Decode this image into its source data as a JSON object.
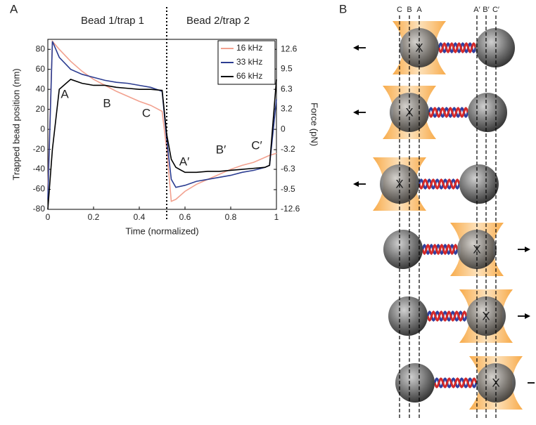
{
  "chart_data": {
    "type": "line",
    "panel_label": "A",
    "xlabel": "Time (normalized)",
    "ylabel": "Trapped bead position (nm)",
    "y2label": "Force (pN)",
    "annotations": [
      "Bead 1/trap 1",
      "Bead 2/trap 2",
      "A",
      "B",
      "C",
      "A′",
      "B′",
      "C′"
    ],
    "x": [
      0,
      0.02,
      0.05,
      0.1,
      0.15,
      0.2,
      0.25,
      0.3,
      0.35,
      0.4,
      0.45,
      0.5,
      0.52,
      0.54,
      0.56,
      0.6,
      0.65,
      0.7,
      0.75,
      0.8,
      0.85,
      0.9,
      0.95,
      0.97,
      1.0
    ],
    "series": [
      {
        "name": "16 kHz",
        "color": "#f2a18f",
        "values": [
          -60,
          88,
          80,
          68,
          58,
          50,
          44,
          38,
          33,
          28,
          24,
          18,
          -20,
          -72,
          -70,
          -62,
          -55,
          -50,
          -45,
          -40,
          -36,
          -33,
          -28,
          -26,
          -24
        ]
      },
      {
        "name": "33 kHz",
        "color": "#2c3d91",
        "values": [
          -70,
          88,
          72,
          60,
          55,
          52,
          49,
          47,
          46,
          44,
          42,
          38,
          -10,
          -50,
          -58,
          -56,
          -52,
          -50,
          -48,
          -46,
          -43,
          -41,
          -38,
          -36,
          30
        ]
      },
      {
        "name": "66 kHz",
        "color": "#000000",
        "values": [
          -80,
          -20,
          40,
          50,
          46,
          44,
          44,
          42,
          41,
          40,
          40,
          39,
          -5,
          -30,
          -38,
          -43,
          -43,
          -42,
          -42,
          -41,
          -40,
          -39,
          -38,
          -36,
          50
        ]
      }
    ],
    "xlim": [
      0,
      1
    ],
    "xticks": [
      0,
      0.2,
      0.4,
      0.6,
      0.8,
      1
    ],
    "ylim": [
      -80,
      90
    ],
    "yticks": [
      -80,
      -60,
      -40,
      -20,
      0,
      20,
      40,
      60,
      80
    ],
    "y2lim": [
      -12.6,
      14.175
    ],
    "y2ticks": [
      -12.6,
      -9.5,
      -6.3,
      -3.2,
      0,
      3.2,
      6.3,
      9.5,
      12.6
    ],
    "legend": "upper right"
  },
  "panel_b": {
    "label": "B",
    "line_labels": [
      "C",
      "B",
      "A",
      "A′",
      "B′",
      "C′"
    ],
    "rows": [
      {
        "mark": "X"
      },
      {
        "mark": "X"
      },
      {
        "mark": "X"
      },
      {
        "mark": "X"
      },
      {
        "mark": "X"
      },
      {
        "mark": "X"
      }
    ]
  }
}
